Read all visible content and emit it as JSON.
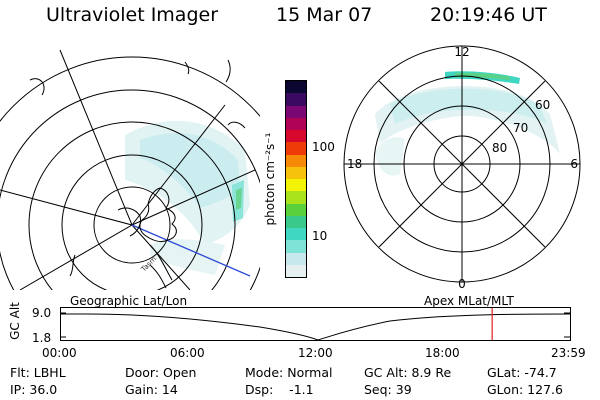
{
  "header": {
    "title": "Ultraviolet Imager",
    "date": "15 Mar 07",
    "time": "20:19:46 UT"
  },
  "colorbar": {
    "unit_label": "photon cm⁻²s⁻¹",
    "ticks": [
      "100",
      "10"
    ],
    "scale": "log",
    "colors": [
      "#e6f0f0",
      "#c7e9ec",
      "#7ee2d6",
      "#3fd6c2",
      "#39c98a",
      "#5ad13c",
      "#a9e21b",
      "#f3f306",
      "#f6c20b",
      "#f68a06",
      "#ee3b07",
      "#d8082d",
      "#b10355",
      "#7a0774",
      "#3a0a63",
      "#0a0730"
    ]
  },
  "left_map": {
    "caption": "Geographic Lat/Lon",
    "accent_line_color": "#2b49d6"
  },
  "right_map": {
    "caption": "Apex MLat/MLT",
    "mlt_labels": {
      "top": "12",
      "bottom": "0",
      "left": "18",
      "right": "6"
    },
    "lat_labels": [
      "60",
      "70",
      "80"
    ]
  },
  "timeline": {
    "axis_label": "GC Alt",
    "y_ticks": [
      "9.0",
      "1.8"
    ],
    "x_ticks": [
      "00:00",
      "06:00",
      "12:00",
      "18:00",
      "23:59"
    ],
    "current_time_fraction": 0.8471,
    "marker_color": "#e02020"
  },
  "info": {
    "filter": "Flt: LBHL",
    "door": "Door: Open",
    "mode": "Mode: Normal",
    "gc_alt": "GC Alt: 8.9 Re",
    "glat": "GLat: -74.7",
    "ip": "IP: 36.0",
    "gain": "Gain: 14",
    "dsp": "Dsp:    -1.1",
    "seq": "Seq: 39",
    "glon": "GLon: 127.6"
  }
}
